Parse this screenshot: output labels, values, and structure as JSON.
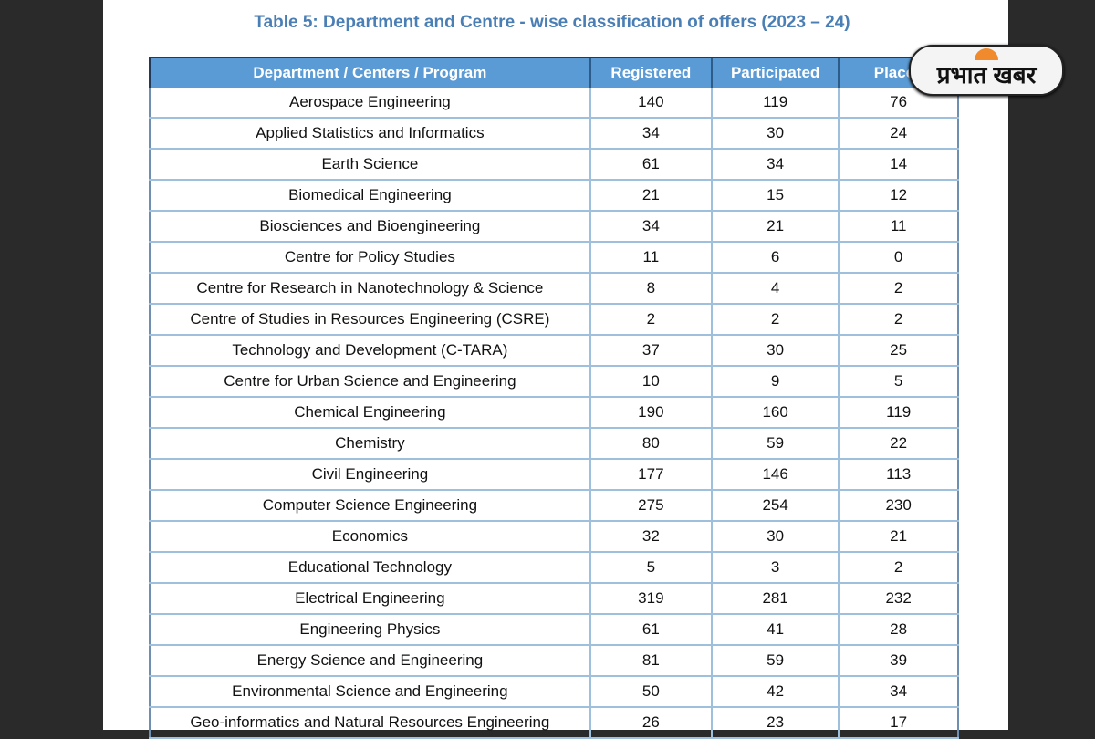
{
  "title": "Table 5: Department and Centre - wise classification of offers (2023 – 24)",
  "logo_text": "प्रभात खबर",
  "columns": [
    "Department / Centers / Program",
    "Registered",
    "Participated",
    "Placed"
  ],
  "rows": [
    [
      "Aerospace Engineering",
      "140",
      "119",
      "76"
    ],
    [
      "Applied Statistics and Informatics",
      "34",
      "30",
      "24"
    ],
    [
      "Earth Science",
      "61",
      "34",
      "14"
    ],
    [
      "Biomedical Engineering",
      "21",
      "15",
      "12"
    ],
    [
      "Biosciences and Bioengineering",
      "34",
      "21",
      "11"
    ],
    [
      "Centre for Policy Studies",
      "11",
      "6",
      "0"
    ],
    [
      "Centre for Research in Nanotechnology & Science",
      "8",
      "4",
      "2"
    ],
    [
      "Centre of Studies in Resources Engineering (CSRE)",
      "2",
      "2",
      "2"
    ],
    [
      "Technology and Development (C-TARA)",
      "37",
      "30",
      "25"
    ],
    [
      "Centre for Urban Science and Engineering",
      "10",
      "9",
      "5"
    ],
    [
      "Chemical Engineering",
      "190",
      "160",
      "119"
    ],
    [
      "Chemistry",
      "80",
      "59",
      "22"
    ],
    [
      "Civil Engineering",
      "177",
      "146",
      "113"
    ],
    [
      "Computer Science Engineering",
      "275",
      "254",
      "230"
    ],
    [
      "Economics",
      "32",
      "30",
      "21"
    ],
    [
      "Educational Technology",
      "5",
      "3",
      "2"
    ],
    [
      "Electrical Engineering",
      "319",
      "281",
      "232"
    ],
    [
      "Engineering Physics",
      "61",
      "41",
      "28"
    ],
    [
      "Energy Science and Engineering",
      "81",
      "59",
      "39"
    ],
    [
      "Environmental Science and Engineering",
      "50",
      "42",
      "34"
    ],
    [
      "Geo-informatics and Natural Resources Engineering",
      "26",
      "23",
      "17"
    ]
  ]
}
